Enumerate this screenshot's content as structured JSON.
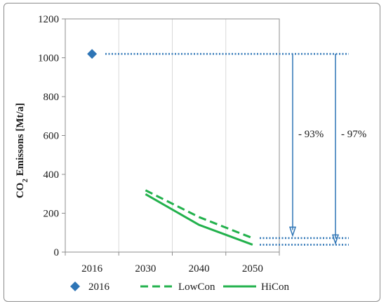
{
  "chart_data": {
    "type": "line",
    "ylabel": {
      "prefix": "CO",
      "sub": "2",
      "suffix": " Emissons [Mt/a]"
    },
    "ylim": [
      0,
      1200
    ],
    "yticks": [
      0,
      200,
      400,
      600,
      800,
      1000,
      1200
    ],
    "categories": [
      "2016",
      "2030",
      "2040",
      "2050"
    ],
    "grid": {
      "vertical": true,
      "horizontal": false
    },
    "legend_position": "bottom",
    "series": [
      {
        "name": "2016",
        "style": "diamond-marker",
        "color": "#2e75b6",
        "points": [
          {
            "x": "2016",
            "y": 1020
          }
        ]
      },
      {
        "name": "LowCon",
        "style": "dashed",
        "color": "#22b14c",
        "points": [
          {
            "x": "2030",
            "y": 318
          },
          {
            "x": "2040",
            "y": 180
          },
          {
            "x": "2050",
            "y": 72
          }
        ]
      },
      {
        "name": "HiCon",
        "style": "solid",
        "color": "#22b14c",
        "points": [
          {
            "x": "2030",
            "y": 298
          },
          {
            "x": "2040",
            "y": 140
          },
          {
            "x": "2050",
            "y": 38
          }
        ]
      }
    ],
    "reference_lines": [
      {
        "y": 1020,
        "color": "#2e75b6"
      },
      {
        "y": 72,
        "color": "#2e75b6"
      },
      {
        "y": 38,
        "color": "#2e75b6"
      }
    ],
    "annotations": [
      {
        "label": "- 93%",
        "from_y": 1020,
        "to_y": 85,
        "color": "#2e75b6"
      },
      {
        "label": "- 97%",
        "from_y": 1020,
        "to_y": 45,
        "color": "#2e75b6"
      }
    ]
  }
}
